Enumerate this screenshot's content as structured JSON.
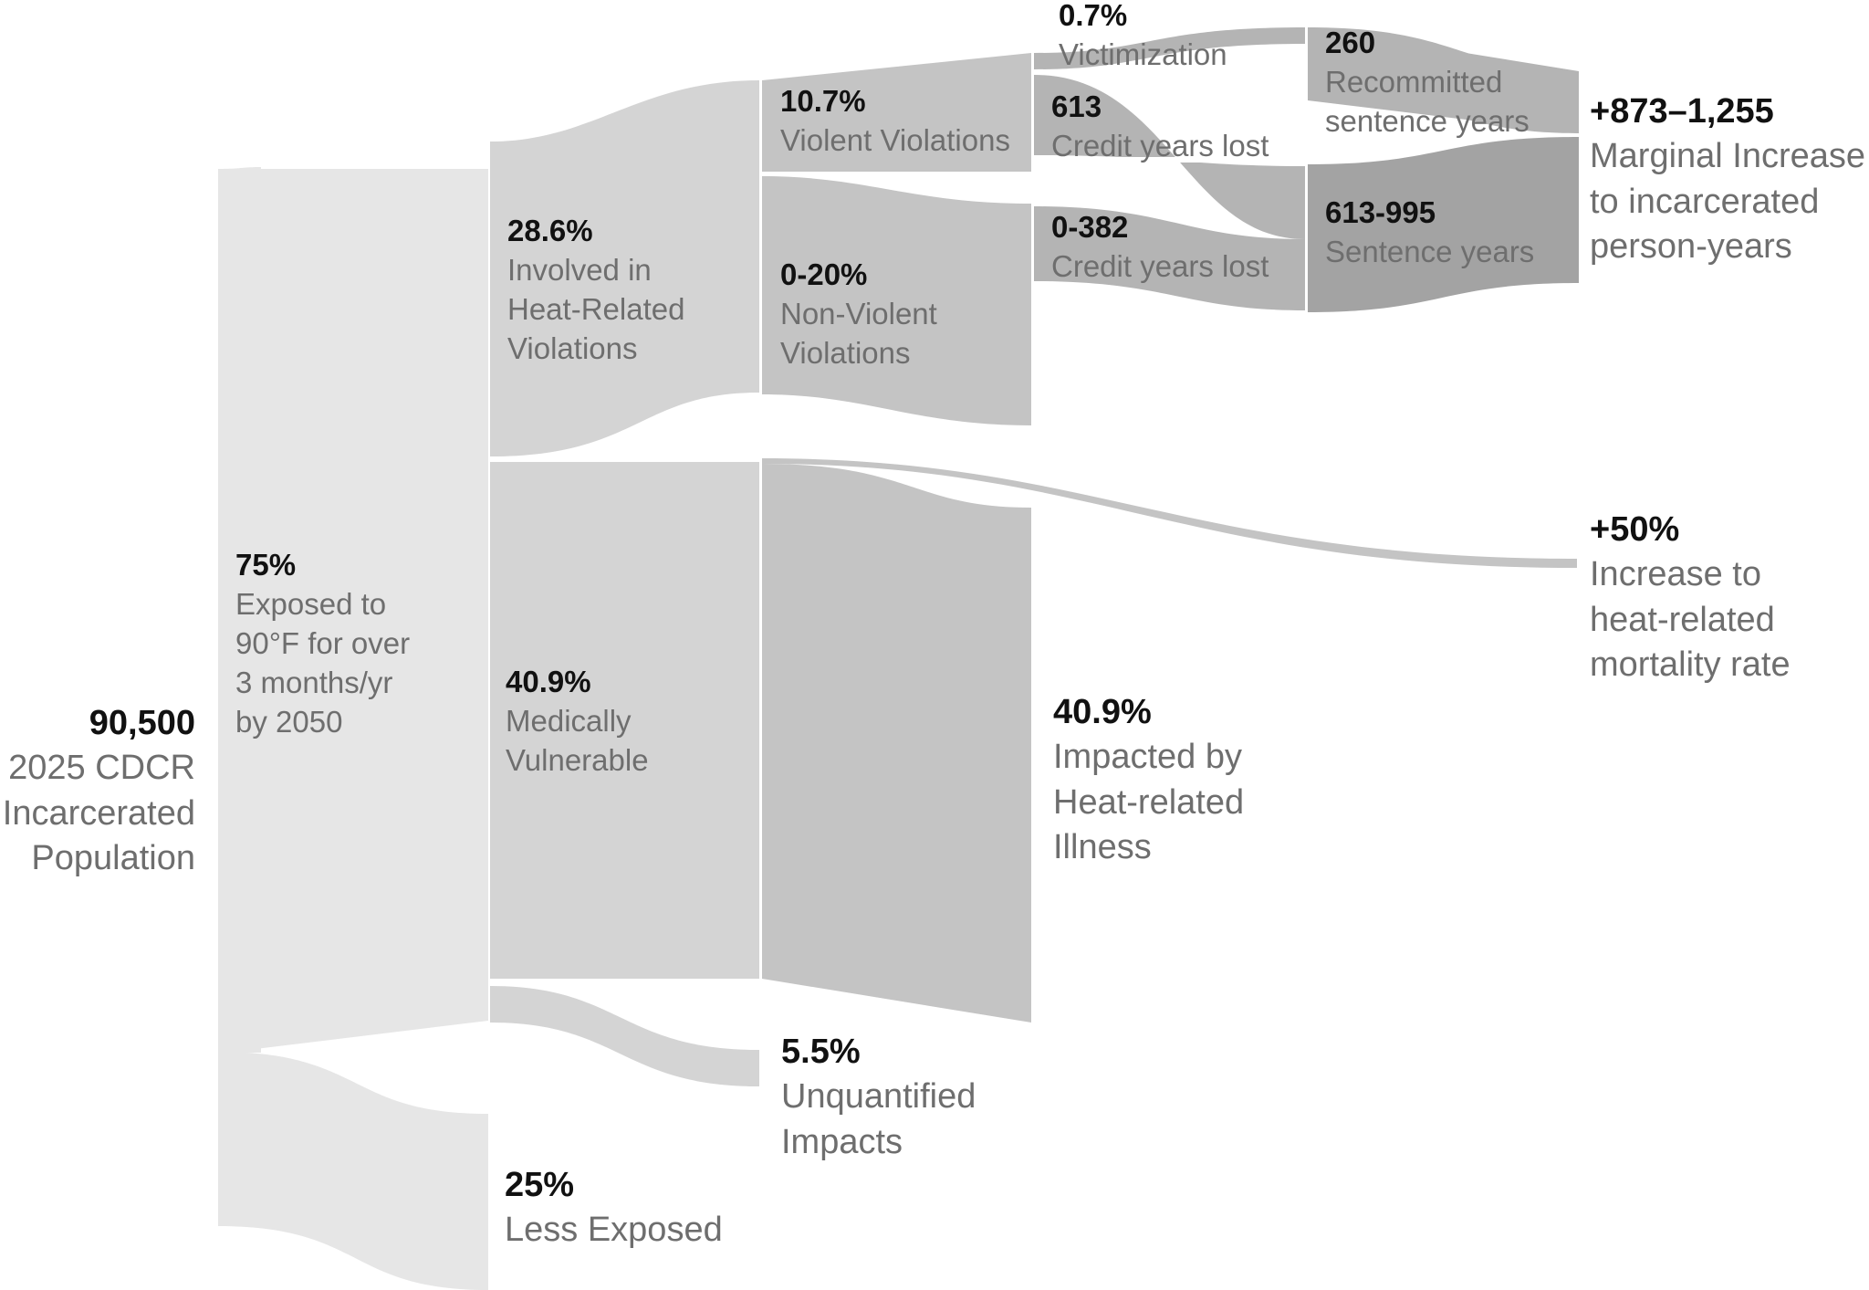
{
  "colors": {
    "level1": "#e6e6e6",
    "level2": "#d4d4d4",
    "level3": "#c4c4c4",
    "level4": "#b4b4b4",
    "level5": "#a3a3a3",
    "value_text": "#111111",
    "desc_text": "#6e6e6e"
  },
  "nodes": {
    "population": {
      "value": "90,500",
      "desc": [
        "2025 CDCR",
        "Incarcerated",
        "Population"
      ]
    },
    "exposed": {
      "value": "75%",
      "desc": [
        "Exposed to",
        "90°F for over",
        "3 months/yr",
        "by 2050"
      ]
    },
    "less_exposed": {
      "value": "25%",
      "desc": [
        "Less Exposed"
      ]
    },
    "heat_violations": {
      "value": "28.6%",
      "desc": [
        "Involved in",
        "Heat-Related",
        "Violations"
      ]
    },
    "medically_vulnerable": {
      "value": "40.9%",
      "desc": [
        "Medically",
        "Vulnerable"
      ]
    },
    "violent": {
      "value": "10.7%",
      "desc": [
        "Violent Violations"
      ]
    },
    "nonviolent": {
      "value": "0-20%",
      "desc": [
        "Non-Violent",
        "Violations"
      ]
    },
    "unquantified": {
      "value": "5.5%",
      "desc": [
        "Unquantified",
        "Impacts"
      ]
    },
    "illness": {
      "value": "40.9%",
      "desc": [
        "Impacted by",
        "Heat-related",
        "Illness"
      ]
    },
    "victimization": {
      "value": "0.7%",
      "desc": [
        "Victimization"
      ]
    },
    "credit_violent": {
      "value": "613",
      "desc": [
        "Credit years lost"
      ]
    },
    "credit_nonviolent": {
      "value": "0-382",
      "desc": [
        "Credit years lost"
      ]
    },
    "recommitted": {
      "value": "260",
      "desc": [
        "Recommitted",
        "sentence years"
      ]
    },
    "sentence": {
      "value": "613-995",
      "desc": [
        "Sentence years"
      ]
    },
    "marginal": {
      "value": "+873–1,255",
      "desc": [
        "Marginal Increase",
        "to incarcerated",
        "person-years"
      ]
    },
    "mortality": {
      "value": "+50%",
      "desc": [
        "Increase to",
        "heat-related",
        "mortality rate"
      ]
    }
  }
}
